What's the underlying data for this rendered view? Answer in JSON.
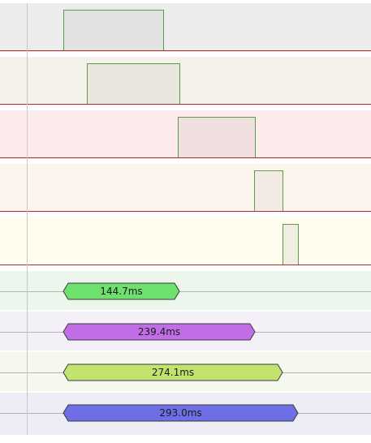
{
  "timeline": {
    "digital_rows": [
      {
        "name": "row-1",
        "bg": "#ececec",
        "pulse_fill": "#e2e2e2"
      },
      {
        "name": "row-2",
        "bg": "#f5f2ec",
        "pulse_fill": "#ebe6dd"
      },
      {
        "name": "row-3",
        "bg": "#fbeceb",
        "pulse_fill": "#efe0df"
      },
      {
        "name": "row-4",
        "bg": "#fdf4ee",
        "pulse_fill": "#f3ebe3"
      },
      {
        "name": "row-5",
        "bg": "#fffdee",
        "pulse_fill": "#f0ede2"
      }
    ],
    "bus_rows": [
      {
        "name": "bus-1",
        "bg": "#edf6ed",
        "color": "#6de06d",
        "label": "144.7ms"
      },
      {
        "name": "bus-2",
        "bg": "#f3f0f8",
        "color": "#c16ee6",
        "label": "239.4ms"
      },
      {
        "name": "bus-3",
        "bg": "#f5f8ef",
        "color": "#c0e46e",
        "label": "274.1ms"
      },
      {
        "name": "bus-4",
        "bg": "#ededf6",
        "color": "#6e6ee6",
        "label": "293.0ms"
      }
    ],
    "colors": {
      "baseline": "#a83232",
      "pulse_edge": "#5a9e4a",
      "bus_outline": "#3a3a3a"
    }
  }
}
